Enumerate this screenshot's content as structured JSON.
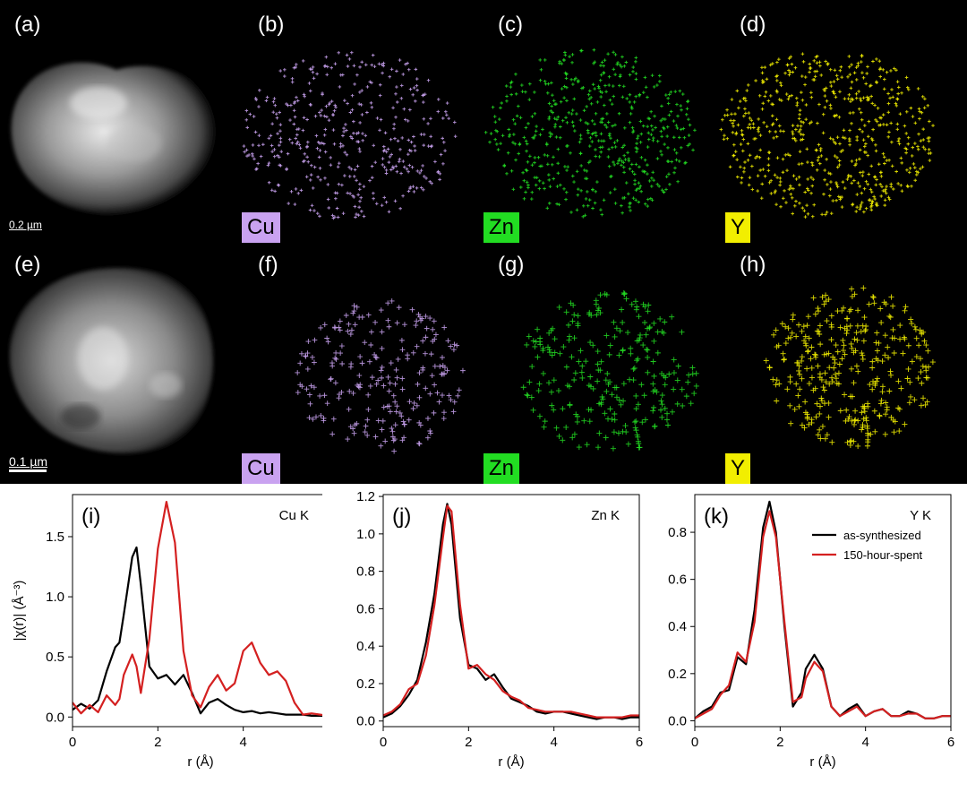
{
  "panels": {
    "a": "(a)",
    "b": "(b)",
    "c": "(c)",
    "d": "(d)",
    "e": "(e)",
    "f": "(f)",
    "g": "(g)",
    "h": "(h)"
  },
  "elements": {
    "row1": [
      "Cu",
      "Zn",
      "Y"
    ],
    "row2": [
      "Cu",
      "Zn",
      "Y"
    ]
  },
  "element_colors": {
    "Cu": "#c9a2f0",
    "Zn": "#22dd22",
    "Y": "#f2ee00"
  },
  "scale": {
    "row1": "0.2 µm",
    "row2": "0.1 µm"
  },
  "chart_data": [
    {
      "type": "line",
      "panel_label": "(i)",
      "annotation": "Cu K",
      "xlabel": "r (Å)",
      "ylabel": "|χ(r)| (Å⁻³)",
      "xlim": [
        0,
        6
      ],
      "ylim": [
        -0.08,
        1.85
      ],
      "xticks": [
        0,
        2,
        4,
        6
      ],
      "yticks": [
        0.0,
        0.5,
        1.0,
        1.5
      ],
      "ytick_labels": [
        "0.0",
        "0.5",
        "1.0",
        "1.5"
      ],
      "x": [
        0.0,
        0.2,
        0.4,
        0.6,
        0.8,
        1.0,
        1.1,
        1.2,
        1.4,
        1.5,
        1.6,
        1.8,
        2.0,
        2.2,
        2.4,
        2.6,
        2.8,
        3.0,
        3.2,
        3.4,
        3.6,
        3.8,
        4.0,
        4.2,
        4.4,
        4.6,
        4.8,
        5.0,
        5.2,
        5.4,
        5.6,
        5.8,
        6.0
      ],
      "series": [
        {
          "name": "as-synthesized",
          "color": "#000000",
          "values": [
            0.06,
            0.11,
            0.07,
            0.14,
            0.38,
            0.58,
            0.62,
            0.85,
            1.33,
            1.41,
            1.1,
            0.42,
            0.32,
            0.35,
            0.27,
            0.35,
            0.2,
            0.03,
            0.12,
            0.15,
            0.1,
            0.06,
            0.04,
            0.05,
            0.03,
            0.04,
            0.03,
            0.02,
            0.02,
            0.02,
            0.01,
            0.01,
            0.01
          ]
        },
        {
          "name": "150-hour-spent",
          "color": "#d42020",
          "values": [
            0.12,
            0.03,
            0.1,
            0.04,
            0.18,
            0.1,
            0.15,
            0.35,
            0.52,
            0.42,
            0.2,
            0.65,
            1.4,
            1.79,
            1.45,
            0.55,
            0.18,
            0.08,
            0.25,
            0.35,
            0.22,
            0.28,
            0.55,
            0.62,
            0.45,
            0.35,
            0.38,
            0.3,
            0.12,
            0.02,
            0.03,
            0.02,
            0.01
          ]
        }
      ]
    },
    {
      "type": "line",
      "panel_label": "(j)",
      "annotation": "Zn K",
      "xlabel": "r (Å)",
      "xlim": [
        0,
        6
      ],
      "ylim": [
        -0.03,
        1.21
      ],
      "xticks": [
        0,
        2,
        4,
        6
      ],
      "yticks": [
        0.0,
        0.2,
        0.4,
        0.6,
        0.8,
        1.0,
        1.2
      ],
      "ytick_labels": [
        "0.0",
        "0.2",
        "0.4",
        "0.6",
        "0.8",
        "1.0",
        "1.2"
      ],
      "x": [
        0.0,
        0.2,
        0.4,
        0.6,
        0.8,
        1.0,
        1.2,
        1.4,
        1.5,
        1.6,
        1.8,
        2.0,
        2.2,
        2.4,
        2.6,
        2.8,
        3.0,
        3.2,
        3.4,
        3.6,
        3.8,
        4.0,
        4.2,
        4.4,
        4.6,
        4.8,
        5.0,
        5.2,
        5.4,
        5.6,
        5.8,
        6.0
      ],
      "series": [
        {
          "name": "as-synthesized",
          "color": "#000000",
          "values": [
            0.02,
            0.04,
            0.08,
            0.14,
            0.22,
            0.42,
            0.68,
            1.05,
            1.16,
            1.05,
            0.55,
            0.3,
            0.28,
            0.22,
            0.25,
            0.18,
            0.12,
            0.1,
            0.08,
            0.05,
            0.04,
            0.05,
            0.05,
            0.04,
            0.03,
            0.02,
            0.01,
            0.02,
            0.02,
            0.01,
            0.02,
            0.02
          ]
        },
        {
          "name": "150-hour-spent",
          "color": "#d42020",
          "values": [
            0.03,
            0.05,
            0.09,
            0.17,
            0.2,
            0.35,
            0.62,
            0.98,
            1.15,
            1.12,
            0.62,
            0.28,
            0.3,
            0.25,
            0.22,
            0.16,
            0.13,
            0.11,
            0.07,
            0.06,
            0.05,
            0.05,
            0.05,
            0.05,
            0.04,
            0.03,
            0.02,
            0.02,
            0.02,
            0.02,
            0.03,
            0.03
          ]
        }
      ]
    },
    {
      "type": "line",
      "panel_label": "(k)",
      "annotation": "Y K",
      "xlabel": "r (Å)",
      "xlim": [
        0,
        6
      ],
      "ylim": [
        -0.025,
        0.96
      ],
      "xticks": [
        0,
        2,
        4,
        6
      ],
      "yticks": [
        0.0,
        0.2,
        0.4,
        0.6,
        0.8
      ],
      "ytick_labels": [
        "0.0",
        "0.2",
        "0.4",
        "0.6",
        "0.8"
      ],
      "legend": {
        "placement": "top-right",
        "entries": [
          "as-synthesized",
          "150-hour-spent"
        ]
      },
      "x": [
        0.0,
        0.2,
        0.4,
        0.6,
        0.8,
        1.0,
        1.2,
        1.4,
        1.6,
        1.75,
        1.9,
        2.1,
        2.3,
        2.5,
        2.6,
        2.8,
        3.0,
        3.2,
        3.4,
        3.6,
        3.8,
        4.0,
        4.2,
        4.4,
        4.6,
        4.8,
        5.0,
        5.2,
        5.4,
        5.6,
        5.8,
        6.0
      ],
      "series": [
        {
          "name": "as-synthesized",
          "color": "#000000",
          "values": [
            0.01,
            0.04,
            0.06,
            0.12,
            0.13,
            0.27,
            0.24,
            0.47,
            0.82,
            0.93,
            0.8,
            0.4,
            0.06,
            0.12,
            0.22,
            0.28,
            0.22,
            0.06,
            0.02,
            0.05,
            0.07,
            0.02,
            0.04,
            0.05,
            0.02,
            0.02,
            0.04,
            0.03,
            0.01,
            0.01,
            0.02,
            0.02
          ]
        },
        {
          "name": "150-hour-spent",
          "color": "#d42020",
          "values": [
            0.01,
            0.03,
            0.05,
            0.11,
            0.15,
            0.29,
            0.25,
            0.42,
            0.78,
            0.89,
            0.78,
            0.42,
            0.08,
            0.1,
            0.18,
            0.25,
            0.21,
            0.06,
            0.02,
            0.04,
            0.06,
            0.02,
            0.04,
            0.05,
            0.02,
            0.02,
            0.03,
            0.03,
            0.01,
            0.01,
            0.02,
            0.02
          ]
        }
      ]
    }
  ]
}
